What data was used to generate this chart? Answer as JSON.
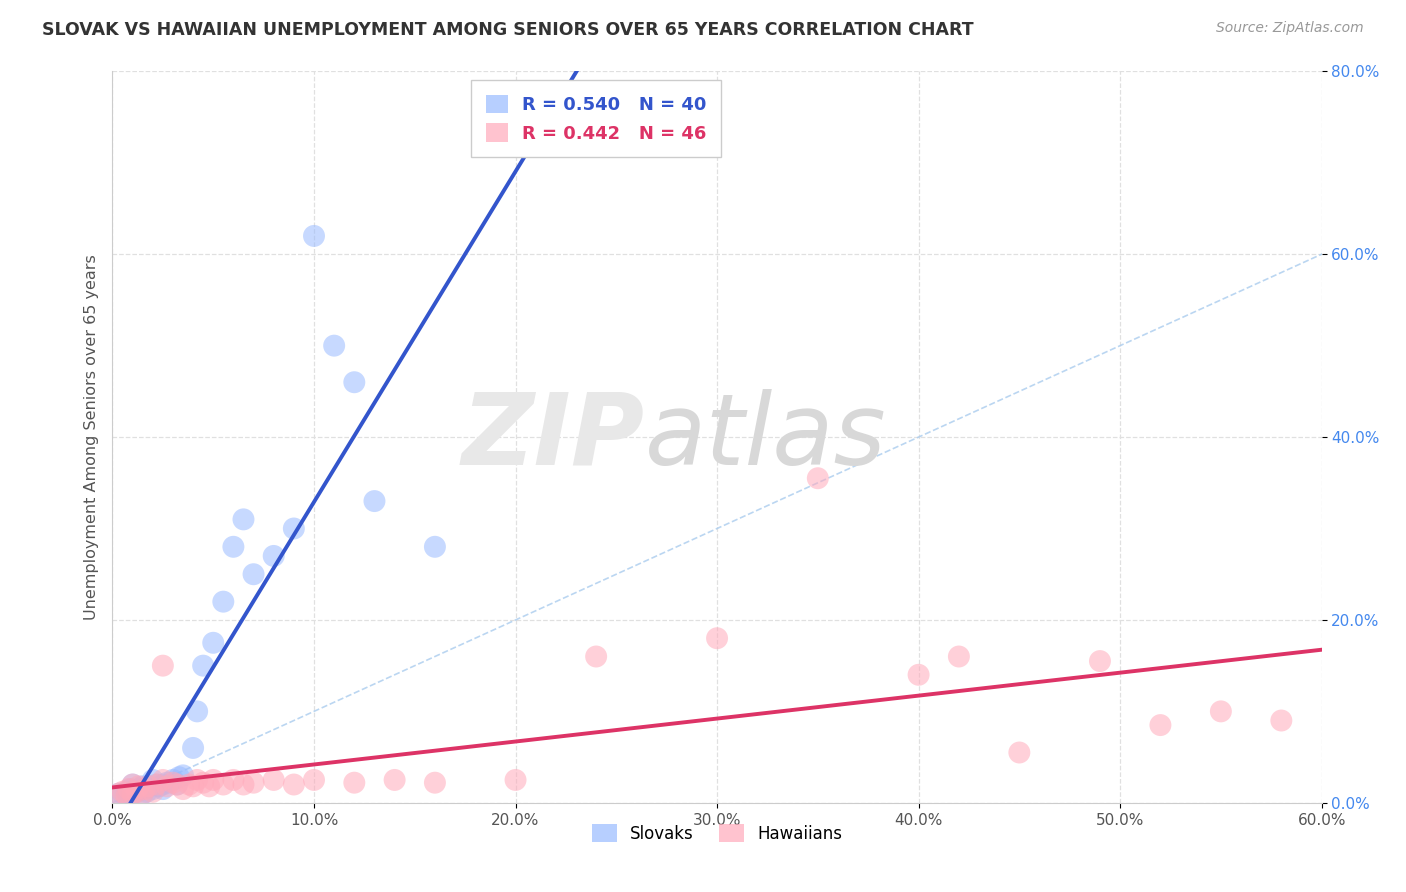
{
  "title": "SLOVAK VS HAWAIIAN UNEMPLOYMENT AMONG SENIORS OVER 65 YEARS CORRELATION CHART",
  "source": "Source: ZipAtlas.com",
  "ylabel": "Unemployment Among Seniors over 65 years",
  "xlim": [
    0.0,
    0.6
  ],
  "ylim": [
    0.0,
    0.8
  ],
  "xticks": [
    0.0,
    0.1,
    0.2,
    0.3,
    0.4,
    0.5,
    0.6
  ],
  "yticks": [
    0.0,
    0.2,
    0.4,
    0.6,
    0.8
  ],
  "xtick_labels": [
    "0.0%",
    "10.0%",
    "20.0%",
    "30.0%",
    "40.0%",
    "50.0%",
    "60.0%"
  ],
  "ytick_labels": [
    "0.0%",
    "20.0%",
    "40.0%",
    "60.0%",
    "80.0%"
  ],
  "slovak_color": "#99bbff",
  "hawaiian_color": "#ffaabb",
  "slovak_line_color": "#3355cc",
  "hawaiian_line_color": "#dd3366",
  "slovak_R": 0.54,
  "slovak_N": 40,
  "hawaiian_R": 0.442,
  "hawaiian_N": 46,
  "slovak_scatter_x": [
    0.003,
    0.005,
    0.007,
    0.008,
    0.009,
    0.01,
    0.01,
    0.012,
    0.013,
    0.015,
    0.015,
    0.016,
    0.017,
    0.018,
    0.02,
    0.02,
    0.022,
    0.023,
    0.025,
    0.025,
    0.027,
    0.03,
    0.032,
    0.033,
    0.035,
    0.04,
    0.042,
    0.045,
    0.05,
    0.055,
    0.06,
    0.065,
    0.07,
    0.08,
    0.09,
    0.1,
    0.11,
    0.12,
    0.13,
    0.16
  ],
  "slovak_scatter_y": [
    0.01,
    0.01,
    0.012,
    0.008,
    0.015,
    0.01,
    0.02,
    0.012,
    0.015,
    0.01,
    0.018,
    0.015,
    0.012,
    0.018,
    0.015,
    0.025,
    0.02,
    0.018,
    0.015,
    0.02,
    0.022,
    0.025,
    0.02,
    0.028,
    0.03,
    0.06,
    0.1,
    0.15,
    0.175,
    0.22,
    0.28,
    0.31,
    0.25,
    0.27,
    0.3,
    0.62,
    0.5,
    0.46,
    0.33,
    0.28
  ],
  "hawaiian_scatter_x": [
    0.003,
    0.005,
    0.007,
    0.008,
    0.01,
    0.01,
    0.012,
    0.013,
    0.015,
    0.016,
    0.018,
    0.02,
    0.022,
    0.025,
    0.025,
    0.027,
    0.03,
    0.032,
    0.035,
    0.038,
    0.04,
    0.042,
    0.045,
    0.048,
    0.05,
    0.055,
    0.06,
    0.065,
    0.07,
    0.08,
    0.09,
    0.1,
    0.12,
    0.14,
    0.16,
    0.2,
    0.24,
    0.3,
    0.35,
    0.4,
    0.42,
    0.45,
    0.49,
    0.52,
    0.55,
    0.58
  ],
  "hawaiian_scatter_y": [
    0.01,
    0.012,
    0.008,
    0.015,
    0.01,
    0.02,
    0.012,
    0.018,
    0.01,
    0.015,
    0.018,
    0.012,
    0.02,
    0.025,
    0.15,
    0.018,
    0.022,
    0.02,
    0.015,
    0.02,
    0.018,
    0.025,
    0.022,
    0.018,
    0.025,
    0.02,
    0.025,
    0.02,
    0.022,
    0.025,
    0.02,
    0.025,
    0.022,
    0.025,
    0.022,
    0.025,
    0.16,
    0.18,
    0.355,
    0.14,
    0.16,
    0.055,
    0.155,
    0.085,
    0.1,
    0.09
  ],
  "background_color": "#ffffff",
  "grid_color": "#e0e0e0",
  "ref_line_color": "#aaccee"
}
